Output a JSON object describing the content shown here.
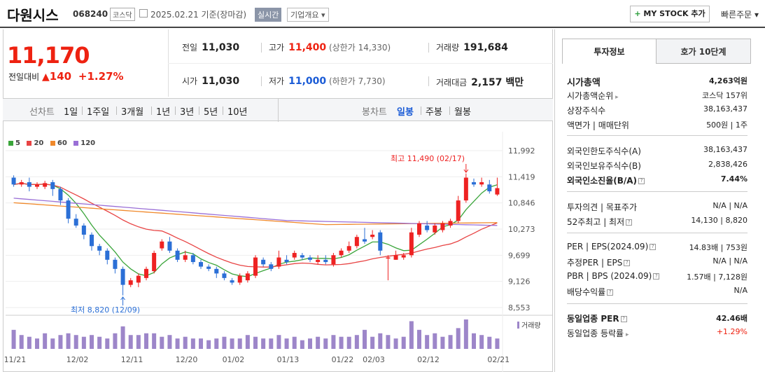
{
  "header": {
    "title": "다원시스",
    "code": "068240",
    "market": "코스닥",
    "date": "2025.02.21",
    "date_note": "기준(장마감)",
    "live": "실시간",
    "company_info": "기업개요 ▾",
    "my_stock": "MY STOCK 추가",
    "quick_order": "빠른주문"
  },
  "price": {
    "current": "11,170",
    "change_label": "전일대비",
    "change_abs": "140",
    "change_pct": "+1.27%"
  },
  "summary": {
    "prev_label": "전일",
    "prev": "11,030",
    "high_label": "고가",
    "high": "11,400",
    "upper_limit": "(상한가 14,330)",
    "volume_label": "거래량",
    "volume": "191,684",
    "open_label": "시가",
    "open": "11,030",
    "low_label": "저가",
    "low": "11,000",
    "lower_limit": "(하한가 7,730)",
    "amount_label": "거래대금",
    "amount": "2,157 백만"
  },
  "chart_tabs": {
    "line_label": "선차트",
    "line": [
      "1일",
      "1주일",
      "3개월",
      "1년",
      "3년",
      "5년",
      "10년"
    ],
    "candle_label": "봉차트",
    "candle": [
      "일봉",
      "주봉",
      "월봉"
    ],
    "active": "일봉"
  },
  "chart_data": {
    "type": "candlestick",
    "legend": [
      {
        "name": "5",
        "color": "#3aa53a"
      },
      {
        "name": "20",
        "color": "#e84444"
      },
      {
        "name": "60",
        "color": "#f0892b"
      },
      {
        "name": "120",
        "color": "#9a6fd6"
      }
    ],
    "y_ticks": [
      "11,992",
      "11,419",
      "10,846",
      "10,273",
      "9,699",
      "9,126",
      "8,553"
    ],
    "x_ticks": [
      "11/21",
      "12/02",
      "12/11",
      "12/20",
      "01/02",
      "01/13",
      "01/22",
      "02/03",
      "02/12",
      "02/21"
    ],
    "high_note": "최고 11,490 (02/17)",
    "low_note": "최저 8,820 (12/09)",
    "volume_label": "거래량",
    "ylim": [
      8553,
      11992
    ],
    "candles": [
      [
        11400,
        11250,
        11450,
        11200
      ],
      [
        11250,
        11300,
        11350,
        11200
      ],
      [
        11300,
        11200,
        11400,
        11100
      ],
      [
        11200,
        11250,
        11300,
        11150
      ],
      [
        11200,
        11280,
        11330,
        11150
      ],
      [
        11300,
        11150,
        11350,
        11000
      ],
      [
        11150,
        10900,
        11200,
        10800
      ],
      [
        10900,
        10500,
        10950,
        10400
      ],
      [
        10500,
        10350,
        10600,
        10300
      ],
      [
        10350,
        10150,
        10400,
        10050
      ],
      [
        10150,
        9900,
        10200,
        9800
      ],
      [
        9900,
        9800,
        9950,
        9700
      ],
      [
        9800,
        9600,
        9850,
        9500
      ],
      [
        9600,
        9400,
        9650,
        9300
      ],
      [
        9400,
        9050,
        9450,
        8820
      ],
      [
        9050,
        9150,
        9200,
        9000
      ],
      [
        9100,
        9250,
        9300,
        9000
      ],
      [
        9200,
        9400,
        9450,
        9150
      ],
      [
        9350,
        9750,
        9800,
        9300
      ],
      [
        9850,
        10000,
        10050,
        9800
      ],
      [
        10000,
        9800,
        10100,
        9750
      ],
      [
        9800,
        9600,
        9850,
        9550
      ],
      [
        9600,
        9700,
        9800,
        9550
      ],
      [
        9700,
        9550,
        9750,
        9500
      ],
      [
        9550,
        9450,
        9600,
        9400
      ],
      [
        9450,
        9400,
        9500,
        9350
      ],
      [
        9400,
        9300,
        9450,
        9200
      ],
      [
        9300,
        9200,
        9350,
        9150
      ],
      [
        9150,
        9100,
        9200,
        9050
      ],
      [
        9100,
        9250,
        9300,
        9050
      ],
      [
        9150,
        9300,
        9350,
        9100
      ],
      [
        9250,
        9650,
        9700,
        9200
      ],
      [
        9600,
        9500,
        9650,
        9450
      ],
      [
        9500,
        9400,
        9550,
        9350
      ],
      [
        9450,
        9650,
        9800,
        9400
      ],
      [
        9600,
        9550,
        9700,
        9500
      ],
      [
        9650,
        9750,
        9800,
        9600
      ],
      [
        9700,
        9650,
        9750,
        9600
      ],
      [
        9650,
        9600,
        9700,
        9550
      ],
      [
        9550,
        9600,
        9700,
        9500
      ],
      [
        9600,
        9550,
        9700,
        9500
      ],
      [
        9500,
        9700,
        9750,
        9450
      ],
      [
        9700,
        9800,
        9850,
        9650
      ],
      [
        9800,
        9900,
        10000,
        9750
      ],
      [
        9900,
        10100,
        10150,
        9850
      ],
      [
        10050,
        10000,
        10300,
        9950
      ],
      [
        10100,
        10150,
        10250,
        10050
      ],
      [
        10200,
        9800,
        10250,
        9700
      ],
      [
        9650,
        9650,
        9700,
        9150
      ],
      [
        9600,
        9700,
        9800,
        9600
      ],
      [
        9650,
        9700,
        9750,
        9600
      ],
      [
        9700,
        10200,
        10300,
        9650
      ],
      [
        10150,
        10400,
        10450,
        10100
      ],
      [
        10350,
        10250,
        10450,
        10200
      ],
      [
        10200,
        10350,
        10400,
        10150
      ],
      [
        10250,
        10400,
        10450,
        10200
      ],
      [
        10350,
        10450,
        10500,
        10300
      ],
      [
        10450,
        10900,
        11000,
        10400
      ],
      [
        10900,
        11400,
        11490,
        10850
      ],
      [
        11300,
        11250,
        11380,
        11200
      ],
      [
        11250,
        11300,
        11400,
        11200
      ],
      [
        11250,
        11100,
        11350,
        11050
      ],
      [
        11030,
        11170,
        11400,
        11000
      ]
    ],
    "volumes": [
      55,
      40,
      35,
      30,
      45,
      30,
      40,
      45,
      40,
      35,
      40,
      35,
      30,
      45,
      65,
      40,
      40,
      45,
      45,
      35,
      40,
      30,
      35,
      30,
      30,
      25,
      30,
      35,
      30,
      30,
      40,
      35,
      30,
      30,
      40,
      30,
      35,
      25,
      30,
      35,
      30,
      40,
      35,
      35,
      40,
      55,
      35,
      45,
      40,
      30,
      35,
      80,
      55,
      40,
      45,
      35,
      40,
      60,
      85,
      45,
      40,
      35,
      30
    ]
  },
  "side": {
    "tab_invest": "투자정보",
    "tab_order": "호가 10단계",
    "market_cap_label": "시가총액",
    "market_cap": "4,263억원",
    "cap_rank_label": "시가총액순위",
    "cap_rank": "코스닥 157위",
    "shares_label": "상장주식수",
    "shares": "38,163,437",
    "face_label": "액면가 | 매매단위",
    "face": "500원 | 1주",
    "foreign_limit_label": "외국인한도주식수(A)",
    "foreign_limit": "38,163,437",
    "foreign_hold_label": "외국인보유주식수(B)",
    "foreign_hold": "2,838,426",
    "foreign_ratio_label": "외국인소진율(B/A)",
    "foreign_ratio": "7.44%",
    "opinion_label": "투자의견 | 목표주가",
    "opinion": "N/A | N/A",
    "w52_label": "52주최고 | 최저",
    "w52": "14,130 | 8,820",
    "per_label": "PER | EPS(2024.09)",
    "per": "14.83배 | 753원",
    "est_per_label": "추정PER | EPS",
    "est_per": "N/A | N/A",
    "pbr_label": "PBR | BPS (2024.09)",
    "pbr": "1.57배 | 7,128원",
    "div_label": "배당수익률",
    "div": "N/A",
    "ind_per_label": "동일업종 PER",
    "ind_per": "42.46배",
    "ind_rate_label": "동일업종 등락률",
    "ind_rate": "+1.29%"
  }
}
